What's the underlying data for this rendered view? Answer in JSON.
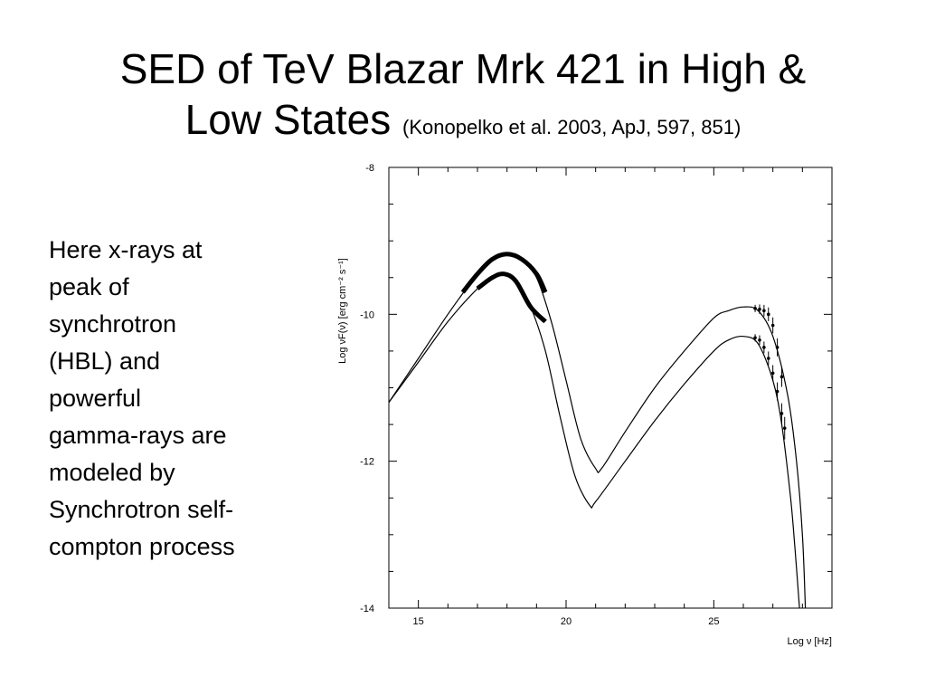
{
  "slide": {
    "title_line1": "SED of TeV Blazar Mrk 421 in High &",
    "title_line2": "Low States",
    "citation": "(Konopelko et al. 2003, ApJ, 597, 851)",
    "body_lines": [
      "Here x-rays at",
      "peak of",
      "synchrotron",
      "(HBL) and",
      "powerful",
      "gamma-rays are",
      "modeled by",
      "Synchrotron self-",
      "compton process"
    ]
  },
  "chart_data": {
    "type": "line",
    "xlabel": "Log ν [Hz]",
    "ylabel": "Log νF(ν) [erg cm⁻² s⁻¹]",
    "xlim": [
      14,
      29
    ],
    "ylim": [
      -14,
      -8
    ],
    "x_ticks": [
      15,
      20,
      25
    ],
    "y_ticks": [
      -14,
      -12,
      -10,
      -8
    ],
    "grid": false,
    "series": [
      {
        "x": [
          14.0,
          15.0,
          16.0,
          17.0,
          17.5,
          18.0,
          18.5,
          19.0,
          19.5,
          20.0,
          20.5,
          21.0,
          21.2,
          22.0,
          23.0,
          24.0,
          25.0,
          25.5,
          26.0,
          26.5,
          27.0,
          27.5,
          27.8,
          28.0,
          28.1
        ],
        "y": [
          -11.2,
          -10.6,
          -10.0,
          -9.45,
          -9.25,
          -9.18,
          -9.25,
          -9.5,
          -10.1,
          -10.9,
          -11.7,
          -12.1,
          -12.1,
          -11.6,
          -11.0,
          -10.5,
          -10.05,
          -9.95,
          -9.9,
          -9.95,
          -10.3,
          -11.1,
          -12.0,
          -13.0,
          -14.0
        ]
      },
      {
        "x": [
          14.0,
          15.0,
          16.0,
          17.0,
          17.5,
          17.9,
          18.3,
          18.8,
          19.3,
          19.8,
          20.3,
          20.8,
          21.0,
          22.0,
          23.0,
          24.0,
          25.0,
          25.5,
          26.0,
          26.5,
          27.0,
          27.3,
          27.6,
          27.75,
          27.9
        ],
        "y": [
          -11.2,
          -10.65,
          -10.1,
          -9.65,
          -9.5,
          -9.45,
          -9.55,
          -9.9,
          -10.5,
          -11.4,
          -12.2,
          -12.6,
          -12.55,
          -12.0,
          -11.45,
          -10.95,
          -10.5,
          -10.35,
          -10.3,
          -10.4,
          -10.9,
          -11.5,
          -12.5,
          -13.2,
          -14.0
        ]
      }
    ],
    "xray_segments": [
      {
        "x": [
          16.5,
          17.0,
          17.5,
          18.0,
          18.5,
          19.0,
          19.3
        ],
        "y": [
          -9.7,
          -9.45,
          -9.25,
          -9.18,
          -9.25,
          -9.45,
          -9.7
        ]
      },
      {
        "x": [
          17.0,
          17.5,
          17.9,
          18.3,
          18.8,
          19.3
        ],
        "y": [
          -9.65,
          -9.5,
          -9.45,
          -9.55,
          -9.9,
          -10.1
        ]
      }
    ],
    "tev_points": [
      {
        "x": [
          26.4,
          26.55,
          26.7,
          26.85,
          27.0,
          27.15,
          27.3
        ],
        "y": [
          -9.92,
          -9.93,
          -9.95,
          -10.0,
          -10.15,
          -10.45,
          -10.85
        ]
      },
      {
        "x": [
          26.4,
          26.55,
          26.7,
          26.85,
          27.0,
          27.15,
          27.3,
          27.4
        ],
        "y": [
          -10.32,
          -10.35,
          -10.45,
          -10.6,
          -10.8,
          -11.05,
          -11.35,
          -11.55
        ]
      }
    ]
  }
}
